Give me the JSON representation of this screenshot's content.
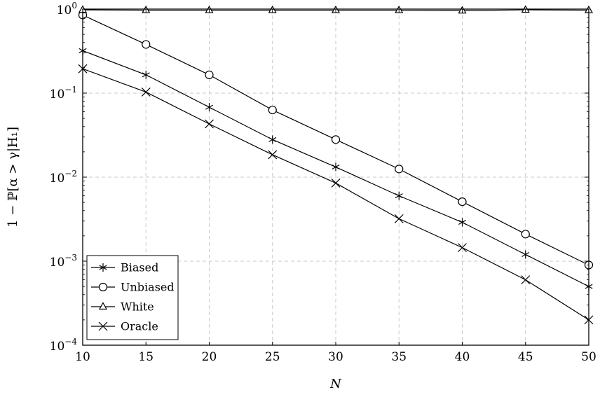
{
  "chart_data": {
    "type": "line",
    "title": "",
    "xlabel": "N",
    "ylabel": "1 − ℙ[α > γ|H₁]",
    "x": [
      10,
      15,
      20,
      25,
      30,
      35,
      40,
      45,
      50
    ],
    "xlim": [
      10,
      50
    ],
    "ylim": [
      0.0001,
      1
    ],
    "yscale": "log",
    "grid": true,
    "legend_position": "bottom-left",
    "x_ticks": [
      "10",
      "15",
      "20",
      "25",
      "30",
      "35",
      "40",
      "45",
      "50"
    ],
    "y_ticks": [
      {
        "value": 0.0001,
        "base": "10",
        "exp": "−4"
      },
      {
        "value": 0.001,
        "base": "10",
        "exp": "−3"
      },
      {
        "value": 0.01,
        "base": "10",
        "exp": "−2"
      },
      {
        "value": 0.1,
        "base": "10",
        "exp": "−1"
      },
      {
        "value": 1,
        "base": "10",
        "exp": "0"
      }
    ],
    "series": [
      {
        "name": "Biased",
        "marker": "asterisk",
        "values": [
          0.32,
          0.165,
          0.068,
          0.028,
          0.0132,
          0.006,
          0.0029,
          0.0012,
          0.0005
        ]
      },
      {
        "name": "Unbiased",
        "marker": "circle",
        "values": [
          0.85,
          0.38,
          0.165,
          0.063,
          0.028,
          0.0125,
          0.0051,
          0.0021,
          0.0009
        ]
      },
      {
        "name": "White",
        "marker": "triangle",
        "values": [
          0.98,
          0.97,
          0.97,
          0.97,
          0.97,
          0.97,
          0.96,
          0.98,
          0.97
        ]
      },
      {
        "name": "Oracle",
        "marker": "cross",
        "values": [
          0.195,
          0.103,
          0.043,
          0.0185,
          0.0085,
          0.0032,
          0.00145,
          0.0006,
          0.0002
        ]
      }
    ]
  }
}
